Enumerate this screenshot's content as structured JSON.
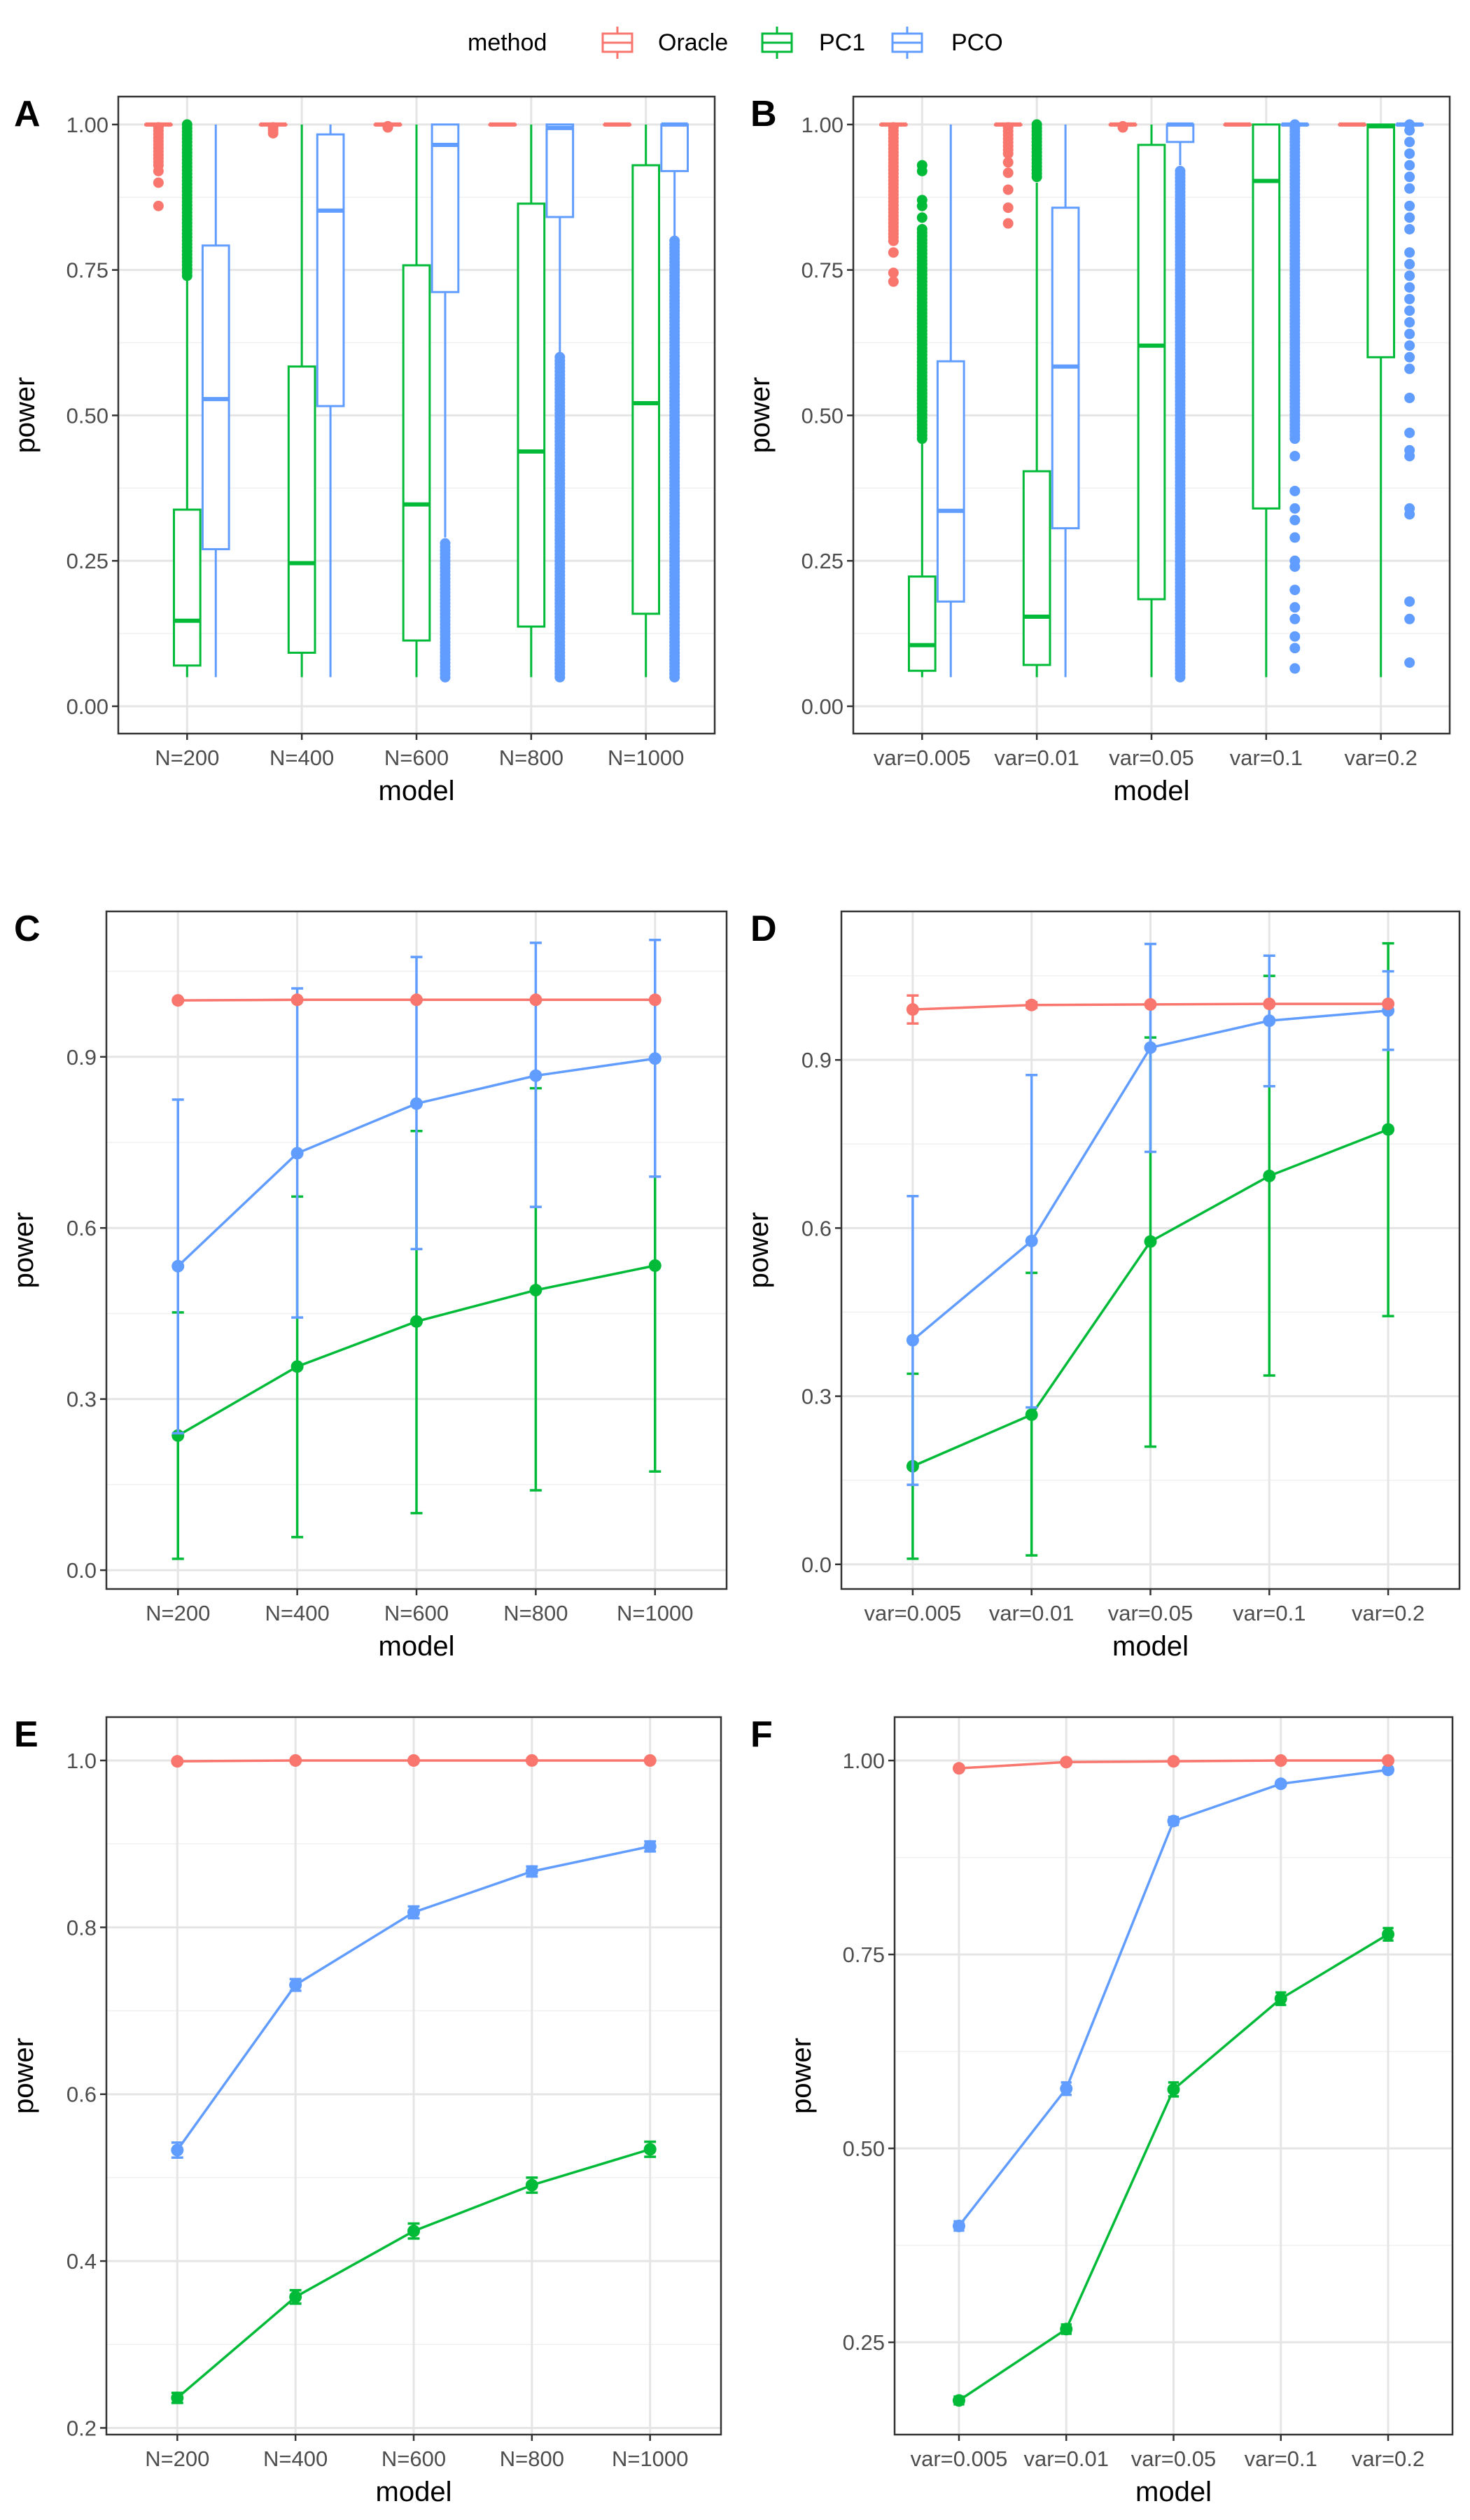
{
  "legend": {
    "title": "method",
    "entries": [
      {
        "name": "Oracle",
        "color": "#F8766D"
      },
      {
        "name": "PC1",
        "color": "#00BA38"
      },
      {
        "name": "PCO",
        "color": "#619CFF"
      }
    ]
  },
  "chart_data": [
    {
      "panel": "A",
      "type": "box",
      "categories": [
        "N=200",
        "N=400",
        "N=600",
        "N=800",
        "N=1000"
      ],
      "xlabel": "model",
      "ylabel": "power",
      "ylim": [
        -0.047,
        1.048
      ],
      "yticks": [
        "0.00",
        "0.25",
        "0.50",
        "0.75",
        "1.00"
      ],
      "grid": true,
      "series": [
        {
          "name": "Oracle",
          "boxes": [
            {
              "lo": 1,
              "q1": 1,
              "med": 1,
              "q3": 1,
              "hi": 1,
              "outliers": [
                0.86,
                0.9,
                0.92
              ],
              "outlier_span": [
                0.93,
                0.995
              ]
            },
            {
              "lo": 1,
              "q1": 1,
              "med": 1,
              "q3": 1,
              "hi": 1,
              "outliers": [
                0.985,
                0.99,
                0.995
              ]
            },
            {
              "lo": 1,
              "q1": 1,
              "med": 1,
              "q3": 1,
              "hi": 1,
              "outliers": [
                0.995,
                0.997
              ]
            },
            {
              "lo": 1,
              "q1": 1,
              "med": 1,
              "q3": 1,
              "hi": 1,
              "outliers": []
            },
            {
              "lo": 1,
              "q1": 1,
              "med": 1,
              "q3": 1,
              "hi": 1,
              "outliers": []
            }
          ]
        },
        {
          "name": "PC1",
          "boxes": [
            {
              "lo": 0.05,
              "q1": 0.07,
              "med": 0.147,
              "q3": 0.338,
              "hi": 0.735,
              "outliers": [],
              "outlier_span": [
                0.74,
                1.0
              ]
            },
            {
              "lo": 0.05,
              "q1": 0.092,
              "med": 0.246,
              "q3": 0.584,
              "hi": 1.0,
              "outliers": []
            },
            {
              "lo": 0.05,
              "q1": 0.113,
              "med": 0.347,
              "q3": 0.758,
              "hi": 1.0,
              "outliers": []
            },
            {
              "lo": 0.05,
              "q1": 0.137,
              "med": 0.438,
              "q3": 0.864,
              "hi": 1.0,
              "outliers": []
            },
            {
              "lo": 0.05,
              "q1": 0.159,
              "med": 0.521,
              "q3": 0.93,
              "hi": 1.0,
              "outliers": []
            }
          ]
        },
        {
          "name": "PCO",
          "boxes": [
            {
              "lo": 0.05,
              "q1": 0.27,
              "med": 0.528,
              "q3": 0.792,
              "hi": 1.0,
              "outliers": []
            },
            {
              "lo": 0.05,
              "q1": 0.516,
              "med": 0.852,
              "q3": 0.983,
              "hi": 1.0,
              "outliers": []
            },
            {
              "lo": 0.29,
              "q1": 0.712,
              "med": 0.965,
              "q3": 1.0,
              "hi": 1.0,
              "outliers": [],
              "outlier_span": [
                0.05,
                0.28
              ]
            },
            {
              "lo": 0.6,
              "q1": 0.841,
              "med": 0.994,
              "q3": 1.0,
              "hi": 1.0,
              "outliers": [],
              "outlier_span": [
                0.05,
                0.6
              ]
            },
            {
              "lo": 0.8,
              "q1": 0.92,
              "med": 1.0,
              "q3": 1.0,
              "hi": 1.0,
              "outliers": [],
              "outlier_span": [
                0.05,
                0.8
              ]
            }
          ]
        }
      ]
    },
    {
      "panel": "B",
      "type": "box",
      "categories": [
        "var=0.005",
        "var=0.01",
        "var=0.05",
        "var=0.1",
        "var=0.2"
      ],
      "xlabel": "model",
      "ylabel": "power",
      "ylim": [
        -0.047,
        1.048
      ],
      "yticks": [
        "0.00",
        "0.25",
        "0.50",
        "0.75",
        "1.00"
      ],
      "grid": true,
      "series": [
        {
          "name": "Oracle",
          "boxes": [
            {
              "lo": 1,
              "q1": 1,
              "med": 1,
              "q3": 1,
              "hi": 1,
              "outliers": [
                0.73,
                0.745,
                0.78
              ],
              "outlier_span": [
                0.8,
                0.995
              ]
            },
            {
              "lo": 1,
              "q1": 1,
              "med": 1,
              "q3": 1,
              "hi": 1,
              "outliers": [
                0.83,
                0.857,
                0.888,
                0.917,
                0.935
              ],
              "outlier_span": [
                0.95,
                0.995
              ]
            },
            {
              "lo": 1,
              "q1": 1,
              "med": 1,
              "q3": 1,
              "hi": 1,
              "outliers": [
                0.995,
                0.997
              ]
            },
            {
              "lo": 1,
              "q1": 1,
              "med": 1,
              "q3": 1,
              "hi": 1,
              "outliers": []
            },
            {
              "lo": 1,
              "q1": 1,
              "med": 1,
              "q3": 1,
              "hi": 1,
              "outliers": []
            }
          ]
        },
        {
          "name": "PC1",
          "boxes": [
            {
              "lo": 0.05,
              "q1": 0.061,
              "med": 0.105,
              "q3": 0.223,
              "hi": 0.46,
              "outliers": [
                0.84,
                0.86,
                0.87,
                0.92,
                0.93
              ],
              "outlier_span": [
                0.46,
                0.82
              ]
            },
            {
              "lo": 0.05,
              "q1": 0.071,
              "med": 0.154,
              "q3": 0.404,
              "hi": 0.9,
              "outliers": [],
              "outlier_span": [
                0.91,
                1.0
              ]
            },
            {
              "lo": 0.05,
              "q1": 0.184,
              "med": 0.62,
              "q3": 0.965,
              "hi": 1.0,
              "outliers": []
            },
            {
              "lo": 0.05,
              "q1": 0.34,
              "med": 0.903,
              "q3": 1.0,
              "hi": 1.0,
              "outliers": []
            },
            {
              "lo": 0.05,
              "q1": 0.6,
              "med": 0.997,
              "q3": 1.0,
              "hi": 1.0,
              "outliers": []
            }
          ]
        },
        {
          "name": "PCO",
          "boxes": [
            {
              "lo": 0.05,
              "q1": 0.18,
              "med": 0.336,
              "q3": 0.593,
              "hi": 1.0,
              "outliers": []
            },
            {
              "lo": 0.05,
              "q1": 0.306,
              "med": 0.584,
              "q3": 0.857,
              "hi": 1.0,
              "outliers": []
            },
            {
              "lo": 0.93,
              "q1": 0.97,
              "med": 1.0,
              "q3": 1.0,
              "hi": 1.0,
              "outliers": [],
              "outlier_span": [
                0.05,
                0.92
              ]
            },
            {
              "lo": 1.0,
              "q1": 1.0,
              "med": 1.0,
              "q3": 1.0,
              "hi": 1.0,
              "outliers": [
                0.065,
                0.1,
                0.12,
                0.15,
                0.17,
                0.2,
                0.24,
                0.25,
                0.29,
                0.32,
                0.34,
                0.37,
                0.43
              ],
              "outlier_span": [
                0.46,
                1.0
              ]
            },
            {
              "lo": 1.0,
              "q1": 1.0,
              "med": 1.0,
              "q3": 1.0,
              "hi": 1.0,
              "outliers": [
                0.075,
                0.15,
                0.18,
                0.33,
                0.34,
                0.43,
                0.44,
                0.47,
                0.53,
                0.58,
                0.6,
                0.62,
                0.64,
                0.66,
                0.68,
                0.7,
                0.72,
                0.74,
                0.76,
                0.78,
                0.82,
                0.84,
                0.86,
                0.89,
                0.91,
                0.93,
                0.95,
                0.97,
                0.99,
                1.0
              ]
            }
          ]
        }
      ]
    },
    {
      "panel": "C",
      "type": "line",
      "categories": [
        "N=200",
        "N=400",
        "N=600",
        "N=800",
        "N=1000"
      ],
      "xlabel": "model",
      "ylabel": "power",
      "ylim": [
        -0.033,
        1.155
      ],
      "yticks": [
        "0.0",
        "0.3",
        "0.6",
        "0.9"
      ],
      "grid": true,
      "series": [
        {
          "name": "Oracle",
          "mean": [
            0.999,
            1.0,
            1.0,
            1.0,
            1.0
          ],
          "lower": [
            0.997,
            1.0,
            1.0,
            1.0,
            1.0
          ],
          "upper": [
            1.001,
            1.0,
            1.0,
            1.0,
            1.0
          ]
        },
        {
          "name": "PC1",
          "mean": [
            0.236,
            0.357,
            0.436,
            0.491,
            0.534
          ],
          "lower": [
            0.02,
            0.058,
            0.1,
            0.14,
            0.173
          ],
          "upper": [
            0.452,
            0.655,
            0.77,
            0.845,
            0.895
          ]
        },
        {
          "name": "PCO",
          "mean": [
            0.533,
            0.731,
            0.818,
            0.867,
            0.897
          ],
          "lower": [
            0.24,
            0.443,
            0.563,
            0.637,
            0.69
          ],
          "upper": [
            0.825,
            1.02,
            1.075,
            1.1,
            1.105
          ]
        }
      ]
    },
    {
      "panel": "D",
      "type": "line",
      "categories": [
        "var=0.005",
        "var=0.01",
        "var=0.05",
        "var=0.1",
        "var=0.2"
      ],
      "xlabel": "model",
      "ylabel": "power",
      "ylim": [
        -0.044,
        1.165
      ],
      "yticks": [
        "0.0",
        "0.3",
        "0.6",
        "0.9"
      ],
      "grid": true,
      "series": [
        {
          "name": "Oracle",
          "mean": [
            0.99,
            0.998,
            0.999,
            1.0,
            1.0
          ],
          "lower": [
            0.965,
            0.993,
            0.999,
            1.0,
            1.0
          ],
          "upper": [
            1.015,
            1.003,
            1.0,
            1.0,
            1.0
          ]
        },
        {
          "name": "PC1",
          "mean": [
            0.175,
            0.267,
            0.576,
            0.693,
            0.776
          ],
          "lower": [
            0.01,
            0.016,
            0.21,
            0.337,
            0.443
          ],
          "upper": [
            0.34,
            0.52,
            0.94,
            1.05,
            1.108
          ]
        },
        {
          "name": "PCO",
          "mean": [
            0.4,
            0.577,
            0.922,
            0.97,
            0.988
          ],
          "lower": [
            0.142,
            0.28,
            0.736,
            0.853,
            0.918
          ],
          "upper": [
            0.657,
            0.873,
            1.107,
            1.086,
            1.058
          ]
        }
      ]
    },
    {
      "panel": "E",
      "type": "line",
      "categories": [
        "N=200",
        "N=400",
        "N=600",
        "N=800",
        "N=1000"
      ],
      "xlabel": "model",
      "ylabel": "power",
      "ylim": [
        0.192,
        1.052
      ],
      "yticks": [
        "0.2",
        "0.4",
        "0.6",
        "0.8",
        "1.0"
      ],
      "grid": true,
      "series": [
        {
          "name": "Oracle",
          "mean": [
            0.999,
            1.0,
            1.0,
            1.0,
            1.0
          ],
          "lower": [
            0.998,
            1.0,
            1.0,
            1.0,
            1.0
          ],
          "upper": [
            1.0,
            1.0,
            1.0,
            1.0,
            1.0
          ]
        },
        {
          "name": "PC1",
          "mean": [
            0.236,
            0.357,
            0.436,
            0.491,
            0.534
          ],
          "lower": [
            0.23,
            0.349,
            0.427,
            0.482,
            0.525
          ],
          "upper": [
            0.242,
            0.365,
            0.445,
            0.5,
            0.543
          ]
        },
        {
          "name": "PCO",
          "mean": [
            0.533,
            0.731,
            0.818,
            0.867,
            0.897
          ],
          "lower": [
            0.524,
            0.724,
            0.811,
            0.861,
            0.891
          ],
          "upper": [
            0.542,
            0.738,
            0.825,
            0.873,
            0.903
          ]
        }
      ]
    },
    {
      "panel": "F",
      "type": "line",
      "categories": [
        "var=0.005",
        "var=0.01",
        "var=0.05",
        "var=0.1",
        "var=0.2"
      ],
      "xlabel": "model",
      "ylabel": "power",
      "ylim": [
        0.131,
        1.056
      ],
      "yticks": [
        "0.25",
        "0.50",
        "0.75",
        "1.00"
      ],
      "grid": true,
      "series": [
        {
          "name": "Oracle",
          "mean": [
            0.99,
            0.998,
            0.999,
            1.0,
            1.0
          ],
          "lower": [
            0.988,
            0.997,
            0.999,
            1.0,
            1.0
          ],
          "upper": [
            0.992,
            0.999,
            1.0,
            1.0,
            1.0
          ]
        },
        {
          "name": "PC1",
          "mean": [
            0.175,
            0.267,
            0.576,
            0.693,
            0.776
          ],
          "lower": [
            0.17,
            0.261,
            0.567,
            0.685,
            0.768
          ],
          "upper": [
            0.18,
            0.273,
            0.585,
            0.701,
            0.784
          ]
        },
        {
          "name": "PCO",
          "mean": [
            0.4,
            0.577,
            0.922,
            0.97,
            0.988
          ],
          "lower": [
            0.394,
            0.569,
            0.917,
            0.967,
            0.986
          ],
          "upper": [
            0.406,
            0.585,
            0.927,
            0.973,
            0.99
          ]
        }
      ]
    }
  ]
}
